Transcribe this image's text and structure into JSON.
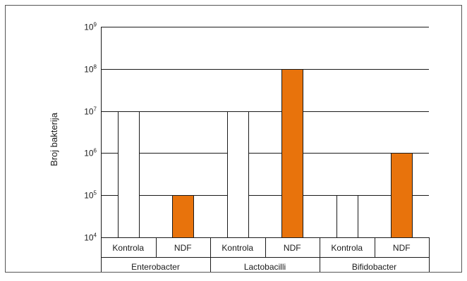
{
  "chart_data": {
    "type": "bar",
    "scale": "log",
    "ylabel": "Broj bakterija",
    "ylim": [
      10000,
      1000000000
    ],
    "yticks": [
      {
        "value": 10000,
        "base": "10",
        "exp": "4"
      },
      {
        "value": 100000,
        "base": "10",
        "exp": "5"
      },
      {
        "value": 1000000,
        "base": "10",
        "exp": "6"
      },
      {
        "value": 10000000,
        "base": "10",
        "exp": "7"
      },
      {
        "value": 100000000,
        "base": "10",
        "exp": "8"
      },
      {
        "value": 1000000000,
        "base": "10",
        "exp": "9"
      }
    ],
    "grid": true,
    "groups": [
      {
        "name": "Enterobacter",
        "bars": [
          {
            "label": "Kontrola",
            "value": 10000000,
            "color": "#ffffff"
          },
          {
            "label": "NDF",
            "value": 100000,
            "color": "#e8730c"
          }
        ]
      },
      {
        "name": "Lactobacilli",
        "bars": [
          {
            "label": "Kontrola",
            "value": 10000000,
            "color": "#ffffff"
          },
          {
            "label": "NDF",
            "value": 100000000,
            "color": "#e8730c"
          }
        ]
      },
      {
        "name": "Bifidobacter",
        "bars": [
          {
            "label": "Kontrola",
            "value": 100000,
            "color": "#ffffff"
          },
          {
            "label": "NDF",
            "value": 1000000,
            "color": "#e8730c"
          }
        ]
      }
    ]
  }
}
